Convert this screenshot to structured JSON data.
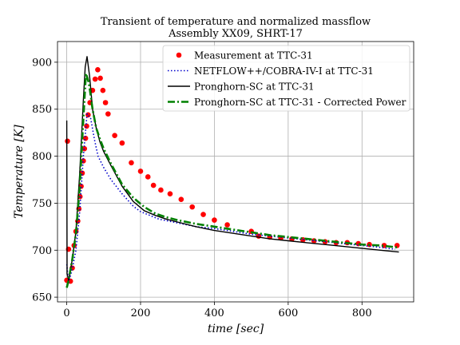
{
  "chart_data": {
    "type": "line",
    "title": "Transient of temperature and normalized massflow",
    "subtitle": "Assembly XX09, SHRT-17",
    "xlabel": "time [sec]",
    "ylabel": "Temperature [K]",
    "xlim": [
      -25,
      940
    ],
    "ylim": [
      645,
      922
    ],
    "xticks": [
      0,
      200,
      400,
      600,
      800
    ],
    "yticks": [
      650,
      700,
      750,
      800,
      850,
      900
    ],
    "grid": true,
    "legend_position": "top-right",
    "series": [
      {
        "name": "Measurement at TTC-31",
        "style": "markers",
        "color": "#ff0000",
        "x": [
          0,
          2,
          5,
          10,
          15,
          20,
          25,
          30,
          33,
          36,
          39,
          42,
          45,
          48,
          51,
          54,
          58,
          63,
          70,
          77,
          84,
          91,
          98,
          105,
          112,
          130,
          150,
          175,
          200,
          220,
          235,
          255,
          280,
          310,
          340,
          370,
          400,
          435,
          500,
          520,
          550,
          580,
          610,
          640,
          670,
          700,
          730,
          760,
          790,
          820,
          860,
          895
        ],
        "y": [
          668,
          816,
          701,
          667,
          681,
          705,
          720,
          731,
          744,
          757,
          768,
          782,
          795,
          808,
          819,
          832,
          844,
          857,
          870,
          882,
          892,
          883,
          870,
          857,
          845,
          822,
          814,
          793,
          784,
          778,
          769,
          764,
          760,
          754,
          746,
          738,
          732,
          727,
          720,
          715,
          714,
          713,
          712,
          711,
          710,
          709,
          708,
          708,
          707,
          706,
          705,
          705
        ]
      },
      {
        "name": "NETFLOW++/COBRA-IV-I at TTC-31",
        "style": "dotted",
        "color": "#0000cc",
        "x": [
          0,
          5,
          15,
          25,
          35,
          45,
          55,
          65,
          75,
          85,
          100,
          120,
          150,
          180,
          200,
          250,
          300,
          350,
          400,
          450,
          500,
          550,
          600,
          650,
          700,
          750,
          800,
          850,
          890
        ],
        "y": [
          685,
          665,
          680,
          700,
          740,
          800,
          845,
          840,
          818,
          800,
          788,
          775,
          760,
          747,
          741,
          733,
          729,
          725,
          723,
          720,
          717,
          715,
          713,
          711,
          709,
          707,
          705,
          703,
          701
        ]
      },
      {
        "name": "Pronghorn-SC at TTC-31",
        "style": "solid",
        "color": "#000000",
        "x": [
          0,
          1,
          5,
          15,
          25,
          35,
          45,
          50,
          55,
          62,
          70,
          80,
          90,
          100,
          120,
          150,
          180,
          210,
          240,
          270,
          300,
          350,
          400,
          450,
          500,
          550,
          600,
          650,
          700,
          750,
          800,
          850,
          900
        ],
        "y": [
          838,
          675,
          668,
          690,
          720,
          780,
          860,
          895,
          906,
          885,
          850,
          830,
          815,
          805,
          790,
          768,
          752,
          742,
          737,
          733,
          730,
          725,
          721,
          718,
          715,
          712,
          710,
          708,
          706,
          704,
          702,
          700,
          698
        ]
      },
      {
        "name": "Pronghorn-SC at TTC-31 - Corrected Power",
        "style": "dashdot",
        "color": "#008000",
        "x": [
          0,
          5,
          15,
          25,
          35,
          45,
          52,
          60,
          70,
          80,
          90,
          100,
          120,
          150,
          180,
          210,
          240,
          270,
          300,
          350,
          400,
          450,
          500,
          550,
          600,
          650,
          700,
          750,
          800,
          850,
          895
        ],
        "y": [
          660,
          668,
          690,
          718,
          765,
          840,
          888,
          878,
          850,
          830,
          818,
          808,
          792,
          770,
          756,
          746,
          739,
          735,
          732,
          728,
          725,
          722,
          719,
          716,
          714,
          712,
          710,
          708,
          706,
          705,
          703
        ]
      }
    ]
  }
}
